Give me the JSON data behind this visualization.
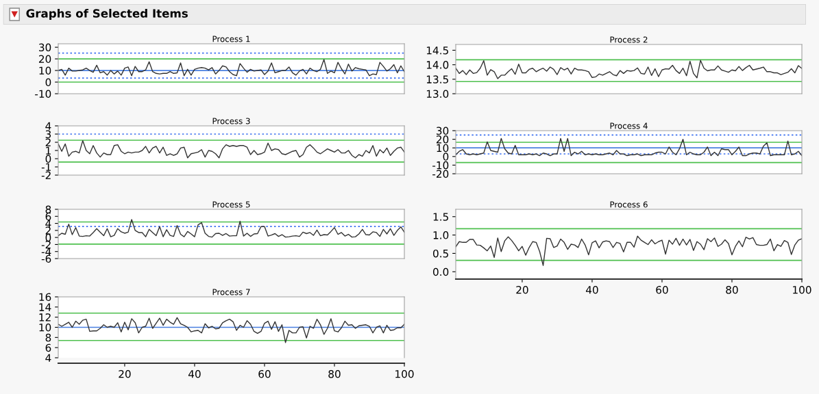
{
  "chart_data": [
    {
      "type": "line",
      "title": "Process 1",
      "annotations": [
        "Graphs of Selected Items"
      ],
      "xlim": [
        1,
        100
      ],
      "ylim": [
        -10,
        33
      ],
      "yticks": [
        -10,
        0,
        10,
        20,
        30
      ],
      "tick_labels": "y",
      "grid": false,
      "marker": "none",
      "line_style": "solid",
      "x": [
        1,
        2,
        3,
        4,
        5,
        6,
        7,
        8,
        9,
        10,
        11,
        12,
        13,
        14,
        15,
        16,
        17,
        18,
        19,
        20,
        21,
        22,
        23,
        24,
        25,
        26,
        27,
        28,
        29,
        30,
        31,
        32,
        33,
        34,
        35,
        36,
        37,
        38,
        39,
        40,
        41,
        42,
        43,
        44,
        45,
        46,
        47,
        48,
        49,
        50,
        51,
        52,
        53,
        54,
        55,
        56,
        57,
        58,
        59,
        60,
        61,
        62,
        63,
        64,
        65,
        66,
        67,
        68,
        69,
        70,
        71,
        72,
        73,
        74,
        75,
        76,
        77,
        78,
        79,
        80,
        81,
        82,
        83,
        84,
        85,
        86,
        87,
        88,
        89,
        90,
        91,
        92,
        93,
        94,
        95,
        96,
        97,
        98,
        99,
        100
      ],
      "series": [
        {
          "color": "#333333",
          "values": [
            10,
            11,
            6,
            12,
            9.5,
            9.5,
            10,
            10.5,
            12,
            10,
            8.5,
            14.5,
            8,
            9,
            6,
            10,
            7,
            9.5,
            6,
            12,
            13,
            5.5,
            13.5,
            9,
            9,
            10.5,
            17.5,
            9,
            7.5,
            7,
            7.5,
            7.5,
            9,
            7.5,
            8,
            16.5,
            5.5,
            11,
            6,
            11,
            12,
            12.5,
            12,
            10.5,
            12.5,
            7,
            10,
            14,
            13,
            9,
            6.5,
            5.5,
            16,
            12,
            8.5,
            11,
            9.5,
            10,
            10.5,
            6.5,
            9.5,
            16.5,
            8,
            9,
            10,
            10,
            13,
            8,
            6,
            9.5,
            11,
            7,
            12,
            10,
            9,
            11,
            19.5,
            7.5,
            9.5,
            8,
            17,
            11.5,
            7,
            15.5,
            9.5,
            12.5,
            11.5,
            11,
            10.5,
            5.5,
            7,
            6.5,
            17,
            13.5,
            9.5,
            11.5,
            15,
            8,
            14,
            9
          ]
        }
      ],
      "ref_lines": [
        {
          "axis": "y",
          "value": 25,
          "color": "#3a6ff0",
          "line_style": "dotted"
        },
        {
          "axis": "y",
          "value": 20,
          "color": "#4ec04e",
          "line_style": "solid"
        },
        {
          "axis": "y",
          "value": 10,
          "color": "#4a7fe0",
          "line_style": "solid"
        },
        {
          "axis": "y",
          "value": 3.5,
          "color": "#3a6ff0",
          "line_style": "dotted"
        },
        {
          "axis": "y",
          "value": 0,
          "color": "#4ec04e",
          "line_style": "solid"
        }
      ]
    },
    {
      "type": "line",
      "title": "Process 2",
      "xlim": [
        1,
        100
      ],
      "ylim": [
        13.0,
        14.7
      ],
      "yticks": [
        {
          "value": 13.0,
          "label": "13.0"
        },
        {
          "value": 13.5,
          "label": "13.5"
        },
        {
          "value": 14.0,
          "label": "14.0"
        },
        {
          "value": 14.5,
          "label": "14.5"
        }
      ],
      "tick_labels": "y",
      "grid": false,
      "marker": "none",
      "line_style": "solid",
      "x": [
        1,
        2,
        3,
        4,
        5,
        6,
        7,
        8,
        9,
        10,
        11,
        12,
        13,
        14,
        15,
        16,
        17,
        18,
        19,
        20,
        21,
        22,
        23,
        24,
        25,
        26,
        27,
        28,
        29,
        30,
        31,
        32,
        33,
        34,
        35,
        36,
        37,
        38,
        39,
        40,
        41,
        42,
        43,
        44,
        45,
        46,
        47,
        48,
        49,
        50,
        51,
        52,
        53,
        54,
        55,
        56,
        57,
        58,
        59,
        60,
        61,
        62,
        63,
        64,
        65,
        66,
        67,
        68,
        69,
        70,
        71,
        72,
        73,
        74,
        75,
        76,
        77,
        78,
        79,
        80,
        81,
        82,
        83,
        84,
        85,
        86,
        87,
        88,
        89,
        90,
        91,
        92,
        93,
        94,
        95,
        96,
        97,
        98,
        99,
        100
      ],
      "series": [
        {
          "color": "#333333",
          "values": [
            13.88,
            13.7,
            13.8,
            13.66,
            13.82,
            13.7,
            13.73,
            13.88,
            14.14,
            13.64,
            13.83,
            13.76,
            13.52,
            13.64,
            13.64,
            13.76,
            13.86,
            13.67,
            14.02,
            13.72,
            13.72,
            13.84,
            13.88,
            13.76,
            13.83,
            13.88,
            13.78,
            13.92,
            13.84,
            13.66,
            13.9,
            13.82,
            13.88,
            13.68,
            13.88,
            13.82,
            13.82,
            13.8,
            13.76,
            13.56,
            13.58,
            13.68,
            13.64,
            13.7,
            13.76,
            13.66,
            13.62,
            13.8,
            13.7,
            13.8,
            13.78,
            13.8,
            13.89,
            13.7,
            13.68,
            13.92,
            13.63,
            13.86,
            13.59,
            13.82,
            13.86,
            13.85,
            13.98,
            13.8,
            13.7,
            13.88,
            13.62,
            14.12,
            13.7,
            13.55,
            14.15,
            13.88,
            13.79,
            13.82,
            13.82,
            13.96,
            13.82,
            13.78,
            13.74,
            13.82,
            13.79,
            13.94,
            13.8,
            13.9,
            13.98,
            13.82,
            13.85,
            13.88,
            13.92,
            13.76,
            13.76,
            13.72,
            13.72,
            13.66,
            13.7,
            13.74,
            13.86,
            13.72,
            13.97,
            13.87
          ]
        }
      ],
      "ref_lines": [
        {
          "axis": "y",
          "value": 14.17,
          "color": "#4ec04e",
          "line_style": "solid"
        },
        {
          "axis": "y",
          "value": 13.42,
          "color": "#4ec04e",
          "line_style": "solid"
        }
      ]
    },
    {
      "type": "line",
      "title": "Process 3",
      "xlim": [
        1,
        100
      ],
      "ylim": [
        -2,
        4
      ],
      "yticks": [
        -2,
        -1,
        0,
        1,
        2,
        3,
        4
      ],
      "tick_labels": "y",
      "grid": false,
      "marker": "none",
      "line_style": "solid",
      "x": [
        1,
        2,
        3,
        4,
        5,
        6,
        7,
        8,
        9,
        10,
        11,
        12,
        13,
        14,
        15,
        16,
        17,
        18,
        19,
        20,
        21,
        22,
        23,
        24,
        25,
        26,
        27,
        28,
        29,
        30,
        31,
        32,
        33,
        34,
        35,
        36,
        37,
        38,
        39,
        40,
        41,
        42,
        43,
        44,
        45,
        46,
        47,
        48,
        49,
        50,
        51,
        52,
        53,
        54,
        55,
        56,
        57,
        58,
        59,
        60,
        61,
        62,
        63,
        64,
        65,
        66,
        67,
        68,
        69,
        70,
        71,
        72,
        73,
        74,
        75,
        76,
        77,
        78,
        79,
        80,
        81,
        82,
        83,
        84,
        85,
        86,
        87,
        88,
        89,
        90,
        91,
        92,
        93,
        94,
        95,
        96,
        97,
        98,
        99,
        100
      ],
      "series": [
        {
          "color": "#333333",
          "values": [
            1.8,
            0.9,
            1.8,
            0.3,
            0.8,
            0.9,
            0.7,
            2.2,
            1.0,
            0.6,
            1.6,
            0.7,
            0.2,
            0.7,
            0.5,
            0.5,
            1.6,
            1.7,
            0.9,
            0.6,
            0.8,
            0.7,
            0.8,
            0.8,
            1.0,
            1.5,
            0.7,
            1.3,
            1.5,
            0.7,
            1.4,
            0.4,
            0.6,
            0.4,
            0.6,
            1.3,
            1.4,
            0.1,
            0.6,
            0.7,
            0.8,
            1.1,
            0.2,
            1.0,
            0.9,
            0.6,
            0.1,
            1.2,
            1.7,
            1.5,
            1.6,
            1.5,
            1.6,
            1.6,
            1.4,
            0.5,
            1.0,
            0.5,
            0.6,
            0.8,
            1.9,
            1.0,
            1.2,
            1.1,
            0.6,
            0.5,
            0.7,
            0.9,
            1.0,
            0.2,
            0.5,
            1.4,
            1.7,
            1.3,
            0.8,
            0.6,
            0.9,
            1.2,
            1.0,
            0.8,
            1.1,
            0.7,
            0.7,
            1.0,
            0.4,
            0.1,
            0.5,
            0.3,
            1.0,
            0.7,
            1.6,
            0.3,
            1.1,
            0.7,
            1.3,
            0.4,
            0.9,
            1.3,
            1.4,
            0.8
          ]
        }
      ],
      "ref_lines": [
        {
          "axis": "y",
          "value": 3.0,
          "color": "#3a6ff0",
          "line_style": "dotted"
        },
        {
          "axis": "y",
          "value": 2.25,
          "color": "#4ec04e",
          "line_style": "solid"
        },
        {
          "axis": "y",
          "value": -0.4,
          "color": "#4ec04e",
          "line_style": "solid"
        }
      ]
    },
    {
      "type": "line",
      "title": "Process 4",
      "xlim": [
        1,
        100
      ],
      "ylim": [
        -20,
        30
      ],
      "yticks": [
        -20,
        -10,
        0,
        10,
        20,
        30
      ],
      "tick_labels": "y",
      "grid": false,
      "marker": "none",
      "line_style": "solid",
      "x": [
        1,
        2,
        3,
        4,
        5,
        6,
        7,
        8,
        9,
        10,
        11,
        12,
        13,
        14,
        15,
        16,
        17,
        18,
        19,
        20,
        21,
        22,
        23,
        24,
        25,
        26,
        27,
        28,
        29,
        30,
        31,
        32,
        33,
        34,
        35,
        36,
        37,
        38,
        39,
        40,
        41,
        42,
        43,
        44,
        45,
        46,
        47,
        48,
        49,
        50,
        51,
        52,
        53,
        54,
        55,
        56,
        57,
        58,
        59,
        60,
        61,
        62,
        63,
        64,
        65,
        66,
        67,
        68,
        69,
        70,
        71,
        72,
        73,
        74,
        75,
        76,
        77,
        78,
        79,
        80,
        81,
        82,
        83,
        84,
        85,
        86,
        87,
        88,
        89,
        90,
        91,
        92,
        93,
        94,
        95,
        96,
        97,
        98,
        99,
        100
      ],
      "series": [
        {
          "color": "#333333",
          "values": [
            2,
            6,
            8,
            3,
            2,
            3,
            2,
            3,
            4,
            17,
            7,
            6,
            5,
            21,
            9,
            4,
            3,
            13,
            2,
            2,
            2,
            3,
            2,
            3,
            1,
            4,
            3,
            1,
            3,
            3,
            21,
            6,
            21,
            1,
            5,
            3,
            6,
            2,
            3,
            2,
            3,
            2,
            2,
            3,
            4,
            2,
            7,
            3,
            3,
            1,
            2,
            2,
            3,
            1,
            2,
            2,
            2,
            4,
            5,
            5,
            3,
            11,
            5,
            2,
            9,
            20,
            2,
            5,
            3,
            2,
            2,
            5,
            11,
            1,
            5,
            1,
            9,
            8,
            8,
            2,
            6,
            11,
            1,
            1,
            3,
            4,
            4,
            3,
            12,
            16,
            1,
            2,
            2,
            2,
            2,
            18,
            2,
            3,
            6,
            1
          ]
        }
      ],
      "ref_lines": [
        {
          "axis": "y",
          "value": 25,
          "color": "#3a6ff0",
          "line_style": "dotted"
        },
        {
          "axis": "y",
          "value": 16.5,
          "color": "#4ec04e",
          "line_style": "solid"
        },
        {
          "axis": "y",
          "value": 10,
          "color": "#4a7fe0",
          "line_style": "solid"
        },
        {
          "axis": "y",
          "value": 3,
          "color": "#3a6ff0",
          "line_style": "dotted"
        },
        {
          "axis": "y",
          "value": -7,
          "color": "#4ec04e",
          "line_style": "solid"
        }
      ]
    },
    {
      "type": "line",
      "title": "Process 5",
      "xlim": [
        1,
        100
      ],
      "ylim": [
        -6,
        8
      ],
      "yticks": [
        -6,
        -4,
        -2,
        0,
        2,
        4,
        6,
        8
      ],
      "tick_labels": "y",
      "grid": false,
      "marker": "none",
      "line_style": "solid",
      "x": [
        1,
        2,
        3,
        4,
        5,
        6,
        7,
        8,
        9,
        10,
        11,
        12,
        13,
        14,
        15,
        16,
        17,
        18,
        19,
        20,
        21,
        22,
        23,
        24,
        25,
        26,
        27,
        28,
        29,
        30,
        31,
        32,
        33,
        34,
        35,
        36,
        37,
        38,
        39,
        40,
        41,
        42,
        43,
        44,
        45,
        46,
        47,
        48,
        49,
        50,
        51,
        52,
        53,
        54,
        55,
        56,
        57,
        58,
        59,
        60,
        61,
        62,
        63,
        64,
        65,
        66,
        67,
        68,
        69,
        70,
        71,
        72,
        73,
        74,
        75,
        76,
        77,
        78,
        79,
        80,
        81,
        82,
        83,
        84,
        85,
        86,
        87,
        88,
        89,
        90,
        91,
        92,
        93,
        94,
        95,
        96,
        97,
        98,
        99,
        100
      ],
      "series": [
        {
          "color": "#333333",
          "values": [
            0.5,
            1.2,
            0.9,
            3.8,
            0.8,
            2.8,
            0.4,
            0.3,
            0.5,
            0.4,
            1.4,
            2.5,
            1.5,
            0.5,
            2.5,
            0.2,
            0.6,
            2.5,
            1.6,
            1.2,
            1.5,
            5.1,
            2.0,
            1.4,
            1.4,
            0.2,
            2.3,
            1.4,
            0.5,
            3.1,
            0.2,
            2.2,
            0.6,
            0.3,
            3.4,
            0.9,
            0.2,
            1.7,
            1.0,
            0.2,
            3.6,
            4.2,
            1.2,
            0.3,
            0.1,
            1.1,
            1.2,
            0.6,
            1.1,
            0.4,
            0.5,
            0.5,
            4.6,
            0.4,
            1.2,
            0.3,
            1.0,
            1.1,
            3.1,
            3.1,
            0.4,
            0.7,
            1.1,
            0.3,
            0.8,
            0.1,
            0.2,
            0.4,
            0.5,
            0.3,
            1.5,
            1.1,
            1.4,
            0.6,
            2.1,
            0.5,
            0.8,
            0.7,
            1.7,
            2.8,
            0.9,
            1.4,
            0.4,
            0.9,
            0.1,
            0.2,
            1.0,
            2.3,
            0.8,
            0.7,
            1.6,
            1.4,
            0.3,
            2.3,
            1.0,
            2.5,
            0.6,
            2.0,
            3.0,
            1.5
          ]
        }
      ],
      "ref_lines": [
        {
          "axis": "y",
          "value": 4.4,
          "color": "#4ec04e",
          "line_style": "solid"
        },
        {
          "axis": "y",
          "value": 3.1,
          "color": "#3a6ff0",
          "line_style": "dotted"
        },
        {
          "axis": "y",
          "value": -1.9,
          "color": "#4ec04e",
          "line_style": "solid"
        }
      ]
    },
    {
      "type": "line",
      "title": "Process 6",
      "xlim": [
        1,
        100
      ],
      "xticks": [
        20,
        40,
        60,
        80,
        100
      ],
      "ylim": [
        -0.2,
        1.7
      ],
      "yticks": [
        {
          "value": 0.0,
          "label": "0.0"
        },
        {
          "value": 0.5,
          "label": "0.5"
        },
        {
          "value": 1.0,
          "label": "1.0"
        },
        {
          "value": 1.5,
          "label": "1.5"
        }
      ],
      "grid": false,
      "marker": "none",
      "line_style": "solid",
      "x": [
        1,
        2,
        3,
        4,
        5,
        6,
        7,
        8,
        9,
        10,
        11,
        12,
        13,
        14,
        15,
        16,
        17,
        18,
        19,
        20,
        21,
        22,
        23,
        24,
        25,
        26,
        27,
        28,
        29,
        30,
        31,
        32,
        33,
        34,
        35,
        36,
        37,
        38,
        39,
        40,
        41,
        42,
        43,
        44,
        45,
        46,
        47,
        48,
        49,
        50,
        51,
        52,
        53,
        54,
        55,
        56,
        57,
        58,
        59,
        60,
        61,
        62,
        63,
        64,
        65,
        66,
        67,
        68,
        69,
        70,
        71,
        72,
        73,
        74,
        75,
        76,
        77,
        78,
        79,
        80,
        81,
        82,
        83,
        84,
        85,
        86,
        87,
        88,
        89,
        90,
        91,
        92,
        93,
        94,
        95,
        96,
        97,
        98,
        99,
        100
      ],
      "series": [
        {
          "color": "#333333",
          "values": [
            0.68,
            0.82,
            0.8,
            0.8,
            0.88,
            0.88,
            0.73,
            0.72,
            0.65,
            0.57,
            0.7,
            0.39,
            0.92,
            0.55,
            0.84,
            0.95,
            0.85,
            0.72,
            0.57,
            0.69,
            0.45,
            0.66,
            0.82,
            0.8,
            0.55,
            0.17,
            0.91,
            0.9,
            0.66,
            0.7,
            0.89,
            0.8,
            0.61,
            0.75,
            0.73,
            0.66,
            0.89,
            0.73,
            0.46,
            0.79,
            0.84,
            0.65,
            0.81,
            0.84,
            0.82,
            0.66,
            0.8,
            0.77,
            0.54,
            0.8,
            0.8,
            0.67,
            0.97,
            0.86,
            0.8,
            0.74,
            0.87,
            0.76,
            0.82,
            0.86,
            0.48,
            0.86,
            0.75,
            0.91,
            0.72,
            0.89,
            0.73,
            0.88,
            0.58,
            0.82,
            0.75,
            0.6,
            0.9,
            0.82,
            0.92,
            0.69,
            0.75,
            0.87,
            0.77,
            0.46,
            0.69,
            0.84,
            0.68,
            0.94,
            0.89,
            0.93,
            0.74,
            0.72,
            0.72,
            0.74,
            0.89,
            0.57,
            0.74,
            0.69,
            0.85,
            0.8,
            0.47,
            0.73,
            0.86,
            0.9
          ]
        }
      ],
      "ref_lines": [
        {
          "axis": "y",
          "value": 1.17,
          "color": "#4ec04e",
          "line_style": "solid"
        },
        {
          "axis": "y",
          "value": 0.31,
          "color": "#4ec04e",
          "line_style": "solid"
        }
      ]
    },
    {
      "type": "line",
      "title": "Process 7",
      "xlim": [
        1,
        100
      ],
      "xticks": [
        20,
        40,
        60,
        80,
        100
      ],
      "ylim": [
        4,
        16
      ],
      "yticks": [
        4,
        6,
        8,
        10,
        12,
        14,
        16
      ],
      "grid": false,
      "marker": "none",
      "line_style": "solid",
      "x": [
        1,
        2,
        3,
        4,
        5,
        6,
        7,
        8,
        9,
        10,
        11,
        12,
        13,
        14,
        15,
        16,
        17,
        18,
        19,
        20,
        21,
        22,
        23,
        24,
        25,
        26,
        27,
        28,
        29,
        30,
        31,
        32,
        33,
        34,
        35,
        36,
        37,
        38,
        39,
        40,
        41,
        42,
        43,
        44,
        45,
        46,
        47,
        48,
        49,
        50,
        51,
        52,
        53,
        54,
        55,
        56,
        57,
        58,
        59,
        60,
        61,
        62,
        63,
        64,
        65,
        66,
        67,
        68,
        69,
        70,
        71,
        72,
        73,
        74,
        75,
        76,
        77,
        78,
        79,
        80,
        81,
        82,
        83,
        84,
        85,
        86,
        87,
        88,
        89,
        90,
        91,
        92,
        93,
        94,
        95,
        96,
        97,
        98,
        99,
        100
      ],
      "series": [
        {
          "color": "#333333",
          "values": [
            10.6,
            10.2,
            10.6,
            11.0,
            10.0,
            11.2,
            10.6,
            11.4,
            11.6,
            9.2,
            9.3,
            9.3,
            9.8,
            10.5,
            10.0,
            10.2,
            10.0,
            10.9,
            9.1,
            11.0,
            9.5,
            11.7,
            10.9,
            8.9,
            10.0,
            10.2,
            11.8,
            9.8,
            10.8,
            11.8,
            10.4,
            11.6,
            11.0,
            10.6,
            11.9,
            10.7,
            10.4,
            10.0,
            9.1,
            9.3,
            9.4,
            8.9,
            10.7,
            9.9,
            10.2,
            9.7,
            9.8,
            10.9,
            11.3,
            11.6,
            11.1,
            9.4,
            10.4,
            10.0,
            11.3,
            10.6,
            9.2,
            8.8,
            9.2,
            10.8,
            11.2,
            9.6,
            11.1,
            9.2,
            10.5,
            7.0,
            9.4,
            8.9,
            8.9,
            10.0,
            10.1,
            7.9,
            10.2,
            9.8,
            11.6,
            10.5,
            8.6,
            9.8,
            11.7,
            9.3,
            9.1,
            9.9,
            11.2,
            10.4,
            10.5,
            9.8,
            10.3,
            10.4,
            10.5,
            10.2,
            8.9,
            10.0,
            10.3,
            8.9,
            10.4,
            9.4,
            9.5,
            9.9,
            9.9,
            10.6
          ]
        }
      ],
      "ref_lines": [
        {
          "axis": "y",
          "value": 12.8,
          "color": "#4ec04e",
          "line_style": "solid"
        },
        {
          "axis": "y",
          "value": 10,
          "color": "#4a7fe0",
          "line_style": "solid"
        },
        {
          "axis": "y",
          "value": 7.4,
          "color": "#4ec04e",
          "line_style": "solid"
        }
      ]
    }
  ]
}
